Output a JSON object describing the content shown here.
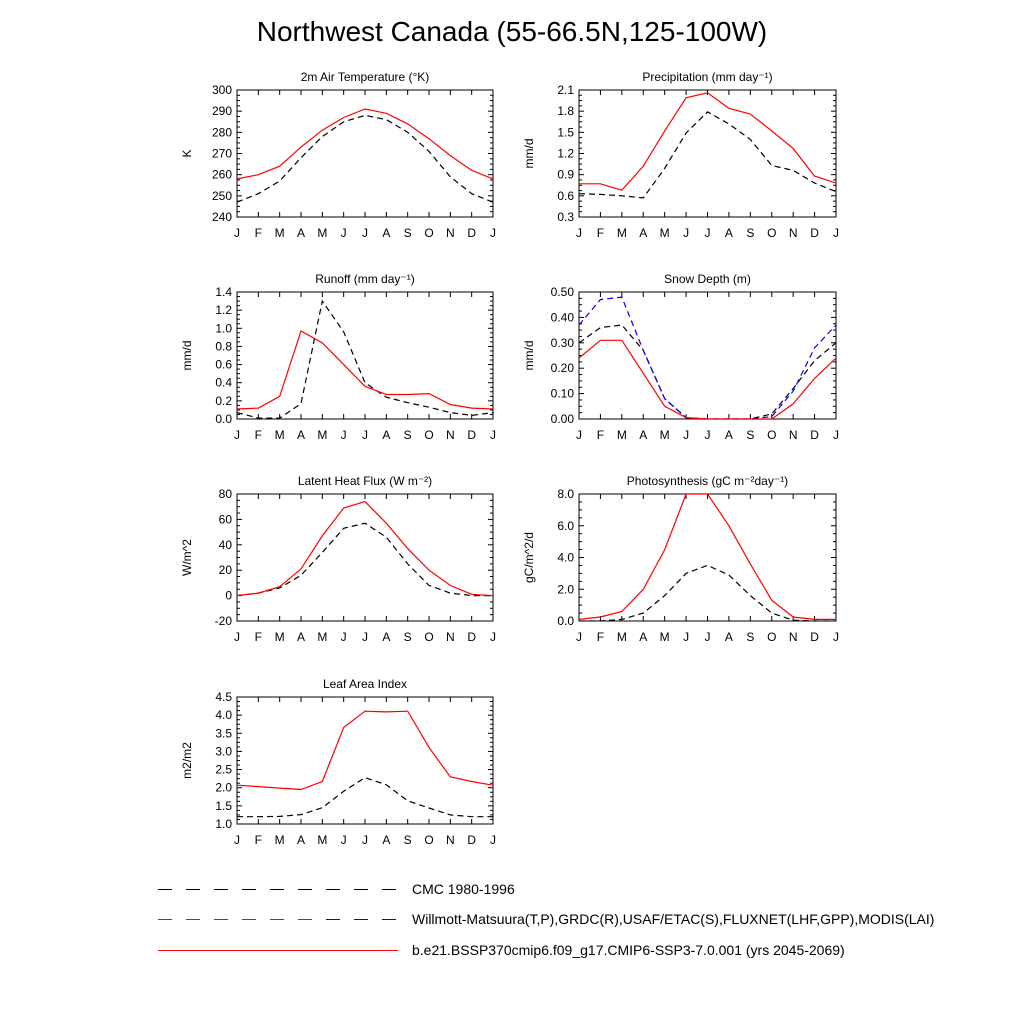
{
  "page_title": "Northwest Canada (55-66.5N,125-100W)",
  "colors": {
    "model": "#ff0000",
    "obs": "#000000",
    "obs_alt": "#0000ff"
  },
  "legend": [
    {
      "label": "CMC 1980-1996",
      "style": "dashed-black"
    },
    {
      "label": "Willmott-Matsuura(T,P),GRDC(R),USAF/ETAC(S),FLUXNET(LHF,GPP),MODIS(LAI)",
      "style": "dashed-red-blue"
    },
    {
      "label": "b.e21.BSSP370cmip6.f09_g17.CMIP6-SSP3-7.0.001 (yrs 2045-2069)",
      "style": "solid-red"
    }
  ],
  "chart_data": [
    {
      "type": "line",
      "title": "2m Air Temperature (°K)",
      "ylabel": "K",
      "categories": [
        "J",
        "F",
        "M",
        "A",
        "M",
        "J",
        "J",
        "A",
        "S",
        "O",
        "N",
        "D",
        "J"
      ],
      "ylim": [
        240,
        300
      ],
      "yticks": [
        "240",
        "250",
        "260",
        "270",
        "280",
        "290",
        "300"
      ],
      "series": [
        {
          "style": "solid-red",
          "values": [
            258,
            260,
            264,
            273,
            281,
            287,
            291,
            289,
            284,
            277,
            269,
            262,
            258
          ]
        },
        {
          "style": "dashed-black",
          "values": [
            247,
            251,
            257,
            268,
            278,
            285,
            288,
            286,
            280,
            271,
            259,
            251,
            247
          ]
        }
      ]
    },
    {
      "type": "line",
      "title": "Precipitation (mm day⁻¹)",
      "ylabel": "mm/d",
      "categories": [
        "J",
        "F",
        "M",
        "A",
        "M",
        "J",
        "J",
        "A",
        "S",
        "O",
        "N",
        "D",
        "J"
      ],
      "ylim": [
        0.3,
        2.1
      ],
      "yticks": [
        "0.3",
        "0.6",
        "0.9",
        "1.2",
        "1.5",
        "1.8",
        "2.1"
      ],
      "series": [
        {
          "style": "solid-red",
          "values": [
            0.77,
            0.77,
            0.68,
            1.02,
            1.52,
            1.99,
            2.06,
            1.84,
            1.76,
            1.52,
            1.27,
            0.88,
            0.78
          ]
        },
        {
          "style": "dashed-black",
          "values": [
            0.63,
            0.62,
            0.6,
            0.57,
            0.99,
            1.49,
            1.79,
            1.62,
            1.4,
            1.03,
            0.96,
            0.78,
            0.66
          ]
        }
      ]
    },
    {
      "type": "line",
      "title": "Runoff (mm day⁻¹)",
      "ylabel": "mm/d",
      "categories": [
        "J",
        "F",
        "M",
        "A",
        "M",
        "J",
        "J",
        "A",
        "S",
        "O",
        "N",
        "D",
        "J"
      ],
      "ylim": [
        0,
        1.4
      ],
      "yticks": [
        "0.0",
        "0.2",
        "0.4",
        "0.6",
        "0.8",
        "1.0",
        "1.2",
        "1.4"
      ],
      "series": [
        {
          "style": "solid-red",
          "values": [
            0.11,
            0.12,
            0.25,
            0.97,
            0.84,
            0.6,
            0.36,
            0.27,
            0.27,
            0.28,
            0.16,
            0.12,
            0.11
          ]
        },
        {
          "style": "dashed-black",
          "values": [
            0.07,
            0.01,
            0.01,
            0.17,
            1.3,
            0.96,
            0.4,
            0.24,
            0.18,
            0.13,
            0.07,
            0.04,
            0.07
          ]
        }
      ]
    },
    {
      "type": "line",
      "title": "Snow Depth (m)",
      "ylabel": "mm/d",
      "categories": [
        "J",
        "F",
        "M",
        "A",
        "M",
        "J",
        "J",
        "A",
        "S",
        "O",
        "N",
        "D",
        "J"
      ],
      "ylim": [
        0,
        0.5
      ],
      "yticks": [
        "0.00",
        "0.10",
        "0.20",
        "0.30",
        "0.40",
        "0.50"
      ],
      "series": [
        {
          "style": "solid-red",
          "values": [
            0.24,
            0.31,
            0.31,
            0.18,
            0.05,
            0.005,
            0.0,
            0.0,
            0.0,
            0.0,
            0.06,
            0.16,
            0.24
          ]
        },
        {
          "style": "dashed-black",
          "values": [
            0.3,
            0.36,
            0.37,
            0.27,
            0.08,
            0.005,
            0.0,
            0.0,
            0.0,
            0.02,
            0.12,
            0.23,
            0.3
          ]
        },
        {
          "style": "dashed-blue",
          "values": [
            0.37,
            0.47,
            0.48,
            0.27,
            0.08,
            0.005,
            0.0,
            0.0,
            0.0,
            0.01,
            0.11,
            0.28,
            0.37
          ]
        }
      ]
    },
    {
      "type": "line",
      "title": "Latent Heat Flux (W m⁻²)",
      "ylabel": "W/m^2",
      "categories": [
        "J",
        "F",
        "M",
        "A",
        "M",
        "J",
        "J",
        "A",
        "S",
        "O",
        "N",
        "D",
        "J"
      ],
      "ylim": [
        -20,
        80
      ],
      "yticks": [
        "-20",
        "0",
        "20",
        "40",
        "60",
        "80"
      ],
      "series": [
        {
          "style": "solid-red",
          "values": [
            0,
            2,
            7,
            21,
            47,
            69,
            74,
            57,
            37,
            20,
            8,
            1,
            0
          ]
        },
        {
          "style": "dashed-black",
          "values": [
            0,
            2,
            6,
            16,
            34,
            53,
            57,
            46,
            25,
            8,
            2,
            0,
            0
          ]
        }
      ]
    },
    {
      "type": "line",
      "title": "Photosynthesis (gC m⁻²day⁻¹)",
      "ylabel": "gC/m^2/d",
      "categories": [
        "J",
        "F",
        "M",
        "A",
        "M",
        "J",
        "J",
        "A",
        "S",
        "O",
        "N",
        "D",
        "J"
      ],
      "ylim": [
        0,
        8
      ],
      "yticks": [
        "0.0",
        "2.0",
        "4.0",
        "6.0",
        "8.0"
      ],
      "series": [
        {
          "style": "solid-red",
          "values": [
            0.1,
            0.25,
            0.6,
            2.0,
            4.5,
            8.0,
            8.0,
            6.0,
            3.6,
            1.3,
            0.25,
            0.1,
            0.1
          ]
        },
        {
          "style": "dashed-black",
          "values": [
            0.0,
            0.0,
            0.1,
            0.5,
            1.6,
            3.0,
            3.5,
            2.9,
            1.6,
            0.5,
            0.05,
            0.0,
            0.0
          ]
        }
      ]
    },
    {
      "type": "line",
      "title": "Leaf Area Index",
      "ylabel": "m2/m2",
      "categories": [
        "J",
        "F",
        "M",
        "A",
        "M",
        "J",
        "J",
        "A",
        "S",
        "O",
        "N",
        "D",
        "J"
      ],
      "ylim": [
        1.0,
        4.5
      ],
      "yticks": [
        "1.0",
        "1.5",
        "2.0",
        "2.5",
        "3.0",
        "3.5",
        "4.0",
        "4.5"
      ],
      "series": [
        {
          "style": "solid-red",
          "values": [
            2.07,
            2.03,
            1.99,
            1.95,
            2.17,
            3.66,
            4.11,
            4.09,
            4.11,
            3.11,
            2.3,
            2.17,
            2.07
          ]
        },
        {
          "style": "dashed-black",
          "values": [
            1.2,
            1.2,
            1.21,
            1.26,
            1.45,
            1.9,
            2.28,
            2.08,
            1.64,
            1.44,
            1.25,
            1.2,
            1.2
          ]
        }
      ]
    }
  ]
}
